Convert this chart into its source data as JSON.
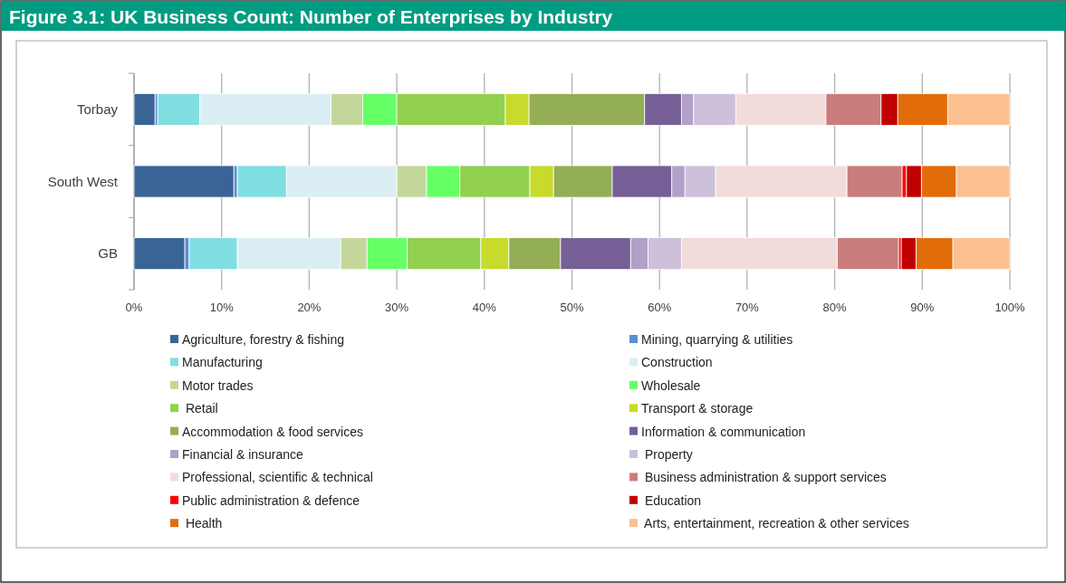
{
  "chart_data": {
    "type": "bar",
    "title": "Figure 3.1: UK Business Count: Number of Enterprises by Industry",
    "orientation": "horizontal",
    "stacked": true,
    "categories": [
      "Torbay",
      "South West",
      "GB"
    ],
    "series": [
      {
        "name": "Agriculture, forestry & fishing",
        "color": "#3b6496",
        "values": [
          2.4,
          11.4,
          5.8
        ]
      },
      {
        "name": "Mining, quarrying & utilities",
        "color": "#5b8fd6",
        "values": [
          0.3,
          0.4,
          0.5
        ]
      },
      {
        "name": "Manufacturing",
        "color": "#7fdfe0",
        "values": [
          4.8,
          5.6,
          5.5
        ]
      },
      {
        "name": "Construction",
        "color": "#dbeef3",
        "values": [
          15.0,
          12.6,
          11.8
        ]
      },
      {
        "name": "Motor trades",
        "color": "#c4d79b",
        "values": [
          3.6,
          3.4,
          3.0
        ]
      },
      {
        "name": "Wholesale",
        "color": "#66ff66",
        "values": [
          3.9,
          3.8,
          4.6
        ]
      },
      {
        "name": " Retail",
        "color": "#92d050",
        "values": [
          12.4,
          8.0,
          8.4
        ]
      },
      {
        "name": "Transport & storage",
        "color": "#c8da2b",
        "values": [
          2.7,
          2.7,
          3.2
        ]
      },
      {
        "name": "Accommodation & food services",
        "color": "#93ae55",
        "values": [
          13.2,
          6.7,
          5.9
        ]
      },
      {
        "name": "Information & communication",
        "color": "#765e96",
        "values": [
          4.2,
          6.8,
          8.0
        ]
      },
      {
        "name": "Financial & insurance",
        "color": "#b1a0c7",
        "values": [
          1.4,
          1.5,
          2.0
        ]
      },
      {
        "name": " Property",
        "color": "#ccc0da",
        "values": [
          4.8,
          3.5,
          3.8
        ]
      },
      {
        "name": "Professional, scientific & technical",
        "color": "#f2dcdb",
        "values": [
          10.3,
          15.0,
          17.8
        ]
      },
      {
        "name": " Business administration & support services",
        "color": "#c97d7d",
        "values": [
          6.3,
          6.3,
          7.0
        ]
      },
      {
        "name": "Public administration & defence",
        "color": "#ff0000",
        "values": [
          0,
          0.5,
          0.3
        ]
      },
      {
        "name": " Education",
        "color": "#c00000",
        "values": [
          1.9,
          1.7,
          1.7
        ]
      },
      {
        "name": " Health",
        "color": "#e36c0a",
        "values": [
          5.7,
          4.0,
          4.2
        ]
      },
      {
        "name": " Arts, entertainment, recreation & other services",
        "color": "#fac090",
        "values": [
          7.1,
          6.1,
          6.5
        ]
      }
    ],
    "xlim": [
      0,
      100
    ],
    "xticks": [
      {
        "value": 0,
        "label": "0%"
      },
      {
        "value": 10,
        "label": "10%"
      },
      {
        "value": 20,
        "label": "20%"
      },
      {
        "value": 30,
        "label": "30%"
      },
      {
        "value": 40,
        "label": "40%"
      },
      {
        "value": 50,
        "label": "50%"
      },
      {
        "value": 60,
        "label": "60%"
      },
      {
        "value": 70,
        "label": "70%"
      },
      {
        "value": 80,
        "label": "80%"
      },
      {
        "value": 90,
        "label": "90%"
      },
      {
        "value": 100,
        "label": "100%"
      }
    ],
    "grid": "x",
    "legend": "bottom"
  }
}
